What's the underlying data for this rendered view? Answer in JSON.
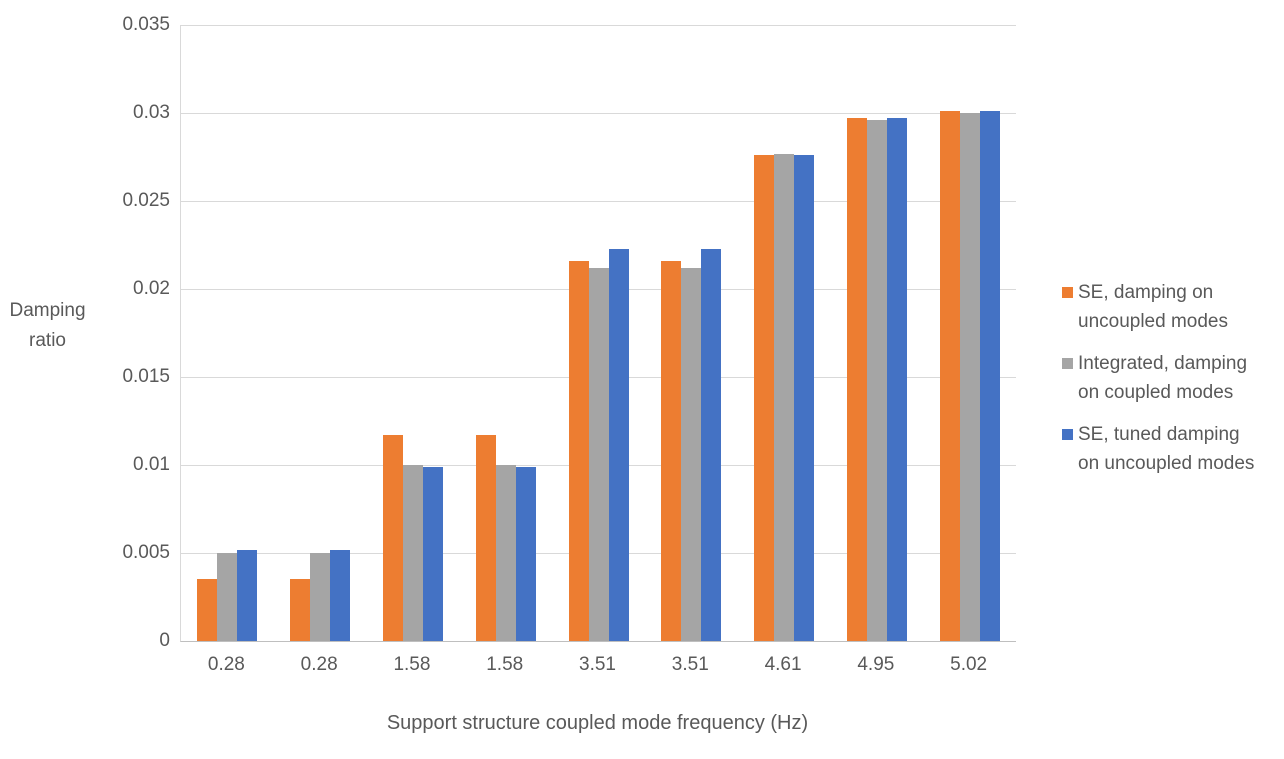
{
  "chart_data": {
    "type": "bar",
    "title": "",
    "xlabel": "Support structure coupled mode frequency (Hz)",
    "ylabel": "Damping ratio",
    "categories": [
      "0.28",
      "0.28",
      "1.58",
      "1.58",
      "3.51",
      "3.51",
      "4.61",
      "4.95",
      "5.02"
    ],
    "series": [
      {
        "name": "SE, damping on uncoupled modes",
        "label_lines": [
          "SE, damping on",
          "uncoupled modes"
        ],
        "color": "#ED7D31",
        "values": [
          0.0035,
          0.0035,
          0.0117,
          0.0117,
          0.0216,
          0.0216,
          0.0276,
          0.0297,
          0.0301
        ]
      },
      {
        "name": "Integrated, damping on coupled modes",
        "label_lines": [
          "Integrated, damping",
          "on coupled modes"
        ],
        "color": "#A5A5A5",
        "values": [
          0.005,
          0.005,
          0.01,
          0.01,
          0.0212,
          0.0212,
          0.0277,
          0.0296,
          0.03
        ]
      },
      {
        "name": "SE, tuned damping on uncoupled modes",
        "label_lines": [
          "SE, tuned damping",
          "on uncoupled modes"
        ],
        "color": "#4472C4",
        "values": [
          0.0052,
          0.0052,
          0.0099,
          0.0099,
          0.0223,
          0.0223,
          0.0276,
          0.0297,
          0.0301
        ]
      }
    ],
    "ylim": [
      0,
      0.035
    ],
    "ytick_values": [
      0,
      0.005,
      0.01,
      0.015,
      0.02,
      0.025,
      0.03,
      0.035
    ],
    "ytick_labels": [
      "0",
      "0.005",
      "0.01",
      "0.015",
      "0.02",
      "0.025",
      "0.03",
      "0.035"
    ],
    "grid": true,
    "legend_position": "right",
    "colors": {
      "background": "#FFFFFF",
      "text": "#595959",
      "gridline": "#D9D9D9",
      "axis_line": "#BFBFBF"
    }
  }
}
